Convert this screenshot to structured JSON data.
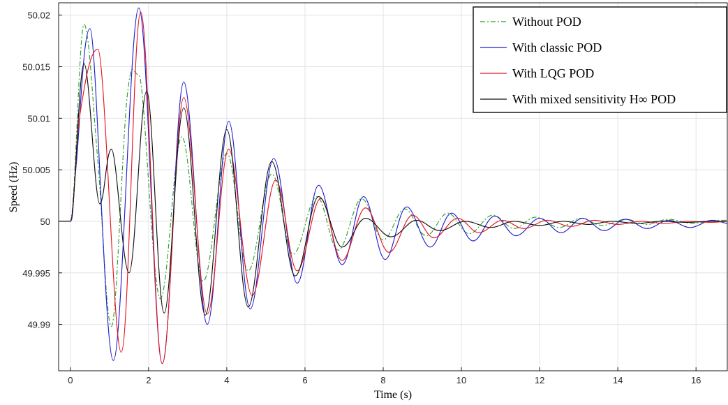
{
  "chart_data": {
    "type": "line",
    "xlabel": "Time (s)",
    "ylabel": "Speed (Hz)",
    "xlim": [
      -0.3,
      16.8
    ],
    "ylim": [
      49.9855,
      50.0212
    ],
    "x_ticks": [
      0,
      2,
      4,
      6,
      8,
      10,
      12,
      14,
      16
    ],
    "x_tick_labels": [
      "0",
      "2",
      "4",
      "6",
      "8",
      "10",
      "12",
      "14",
      "16"
    ],
    "y_ticks": [
      49.99,
      49.995,
      50,
      50.005,
      50.01,
      50.015,
      50.02
    ],
    "y_tick_labels": [
      "49.99",
      "49.995",
      "50",
      "50.005",
      "50.01",
      "50.015",
      "50.02"
    ],
    "grid": true,
    "legend_position": "top-right",
    "series": [
      {
        "name": "Without POD",
        "color": "#2ca02c",
        "style": "dash-dot",
        "x": [
          -0.3,
          0.0,
          0.35,
          0.7,
          1.05,
          1.45,
          1.75,
          2.3,
          2.85,
          3.4,
          4.0,
          4.55,
          5.15,
          5.7,
          6.3,
          6.85,
          7.45,
          8.0,
          8.55,
          9.1,
          9.65,
          10.2,
          10.8,
          11.35,
          11.9,
          12.5,
          13.05,
          13.6,
          14.2,
          14.75,
          15.3,
          15.9,
          16.5,
          16.8
        ],
        "y": [
          50.0,
          50.0,
          50.0191,
          50.006,
          49.9898,
          50.012,
          50.0142,
          49.9925,
          50.0082,
          49.9942,
          50.0066,
          49.9952,
          50.0046,
          49.9968,
          50.0024,
          49.9972,
          50.0022,
          49.9982,
          50.0012,
          49.9986,
          50.0008,
          49.9988,
          50.0006,
          49.9993,
          50.0004,
          49.9994,
          50.0003,
          49.9996,
          50.0002,
          49.9997,
          50.0002,
          49.9998,
          50.0001,
          50.0001
        ]
      },
      {
        "name": "With classic POD",
        "color": "#1f1fd0",
        "style": "solid",
        "x": [
          -0.3,
          0.0,
          0.15,
          0.5,
          1.1,
          1.75,
          2.35,
          2.9,
          3.5,
          4.05,
          4.6,
          5.2,
          5.8,
          6.35,
          6.95,
          7.5,
          8.05,
          8.6,
          9.2,
          9.75,
          10.3,
          10.85,
          11.4,
          12.0,
          12.55,
          13.1,
          13.65,
          14.2,
          14.75,
          15.3,
          15.85,
          16.4,
          16.8
        ],
        "y": [
          50.0,
          50.0,
          50.0055,
          50.0187,
          49.9865,
          50.0207,
          49.9862,
          50.0135,
          49.99,
          50.0097,
          49.9915,
          50.0061,
          49.994,
          50.0035,
          49.9958,
          50.0024,
          49.9963,
          50.0014,
          49.9975,
          50.0008,
          49.9981,
          50.0005,
          49.9986,
          50.0003,
          49.9989,
          50.0003,
          49.9991,
          50.0002,
          49.9993,
          50.0001,
          49.9994,
          50.0001,
          49.9998
        ]
      },
      {
        "name": "With LQG POD",
        "color": "#e8141e",
        "style": "solid",
        "x": [
          -0.3,
          0.0,
          0.25,
          0.7,
          1.3,
          1.8,
          2.35,
          2.9,
          3.5,
          4.05,
          4.65,
          5.25,
          5.8,
          6.4,
          6.95,
          7.55,
          8.15,
          8.75,
          9.3,
          9.9,
          10.45,
          11.05,
          11.6,
          12.2,
          12.8,
          13.4,
          14.0,
          14.6,
          15.2,
          15.8,
          16.4,
          16.8
        ],
        "y": [
          50.0,
          50.0,
          50.0105,
          50.0167,
          49.9873,
          50.0203,
          49.9862,
          50.012,
          49.991,
          50.007,
          49.9928,
          50.004,
          49.9952,
          50.0022,
          49.9962,
          50.0013,
          49.997,
          50.0006,
          49.9984,
          50.0003,
          49.9989,
          50.0001,
          49.9993,
          50.0001,
          49.9995,
          50.0001,
          49.9997,
          50.0,
          49.9998,
          50.0,
          49.9999,
          50.0
        ]
      },
      {
        "name": "With mixed sensitivity H∞ POD",
        "color": "#111111",
        "style": "solid",
        "x": [
          -0.3,
          0.0,
          0.35,
          0.75,
          1.05,
          1.5,
          1.95,
          2.4,
          2.9,
          3.45,
          4.0,
          4.55,
          5.15,
          5.75,
          6.35,
          6.95,
          7.55,
          8.2,
          8.85,
          9.45,
          10.1,
          10.75,
          11.35,
          12.0,
          12.6,
          13.25,
          13.85,
          14.5,
          15.1,
          15.75,
          16.35,
          16.8
        ],
        "y": [
          50.0,
          50.0,
          50.0153,
          50.0017,
          50.007,
          49.995,
          50.0126,
          49.9911,
          50.011,
          49.9909,
          50.0089,
          49.9917,
          50.0058,
          49.9947,
          50.0024,
          49.9975,
          50.0003,
          49.9985,
          50.0001,
          49.9991,
          50.0,
          49.9994,
          50.0,
          49.9996,
          50.0,
          49.9997,
          50.0,
          49.9998,
          50.0,
          49.9999,
          50.0,
          50.0
        ]
      }
    ]
  }
}
